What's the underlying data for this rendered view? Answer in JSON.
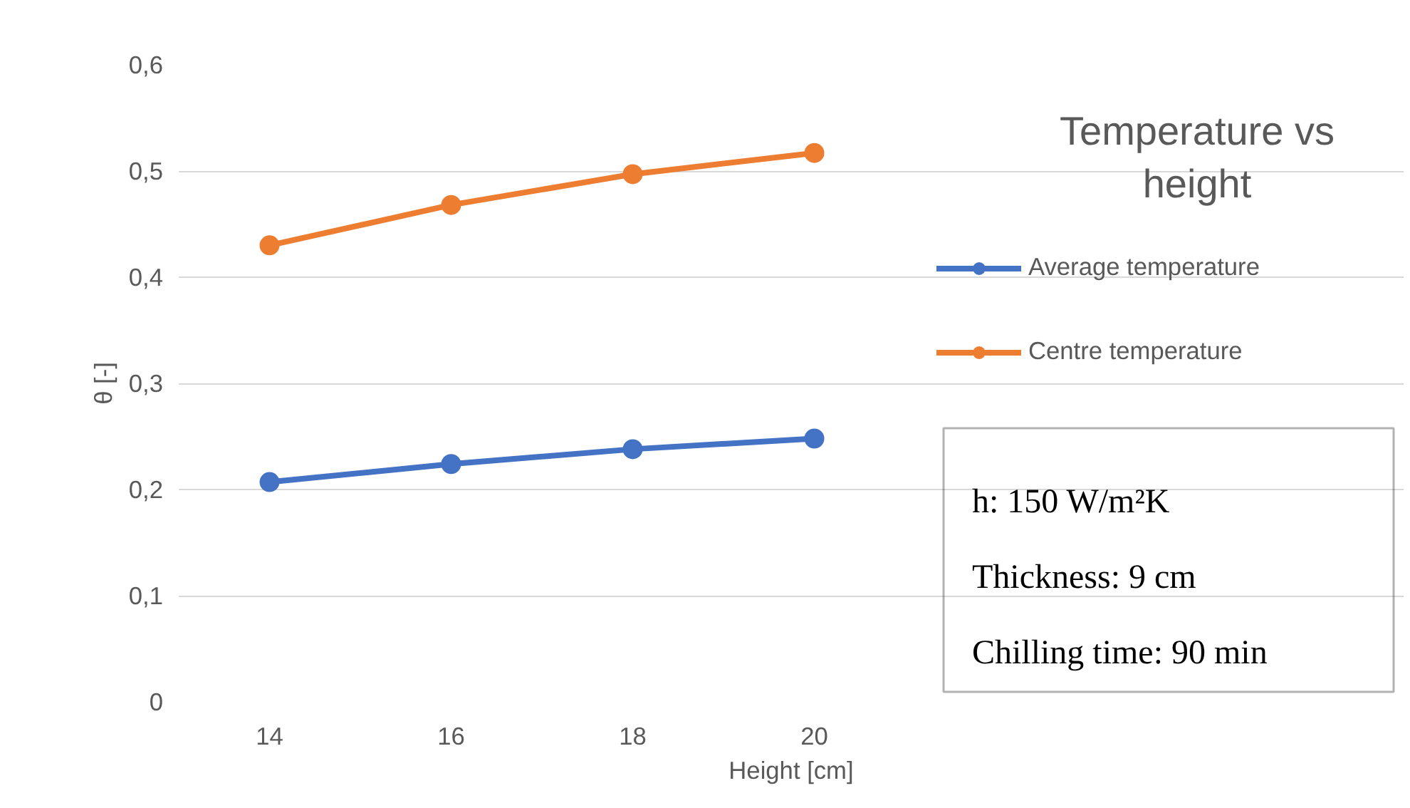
{
  "chart_data": {
    "type": "line",
    "title": "Temperature vs height",
    "xlabel": "Height [cm]",
    "ylabel": "θ [-]",
    "categories": [
      "14",
      "16",
      "18",
      "20"
    ],
    "series": [
      {
        "name": "Average temperature",
        "color": "#4472c4",
        "values": [
          0.207,
          0.224,
          0.238,
          0.248
        ]
      },
      {
        "name": "Centre temperature",
        "color": "#ed7d31",
        "values": [
          0.43,
          0.468,
          0.497,
          0.517
        ]
      }
    ],
    "ylim": [
      0,
      0.6
    ],
    "yticks": [
      0,
      {
        "value": 0.1,
        "label": "0,1"
      },
      {
        "value": 0.2,
        "label": "0,2"
      },
      {
        "value": 0.3,
        "label": "0,3"
      },
      {
        "value": 0.4,
        "label": "0,4"
      },
      {
        "value": 0.5,
        "label": "0,5"
      },
      {
        "value": 0.6,
        "label": "0,6"
      }
    ],
    "grid": "y",
    "legend": "right",
    "marker": "circle",
    "line_style": "solid",
    "annotations": [
      "h: 150 W/m²K",
      "Thickness: 9 cm",
      "Chilling time: 90 min"
    ]
  }
}
